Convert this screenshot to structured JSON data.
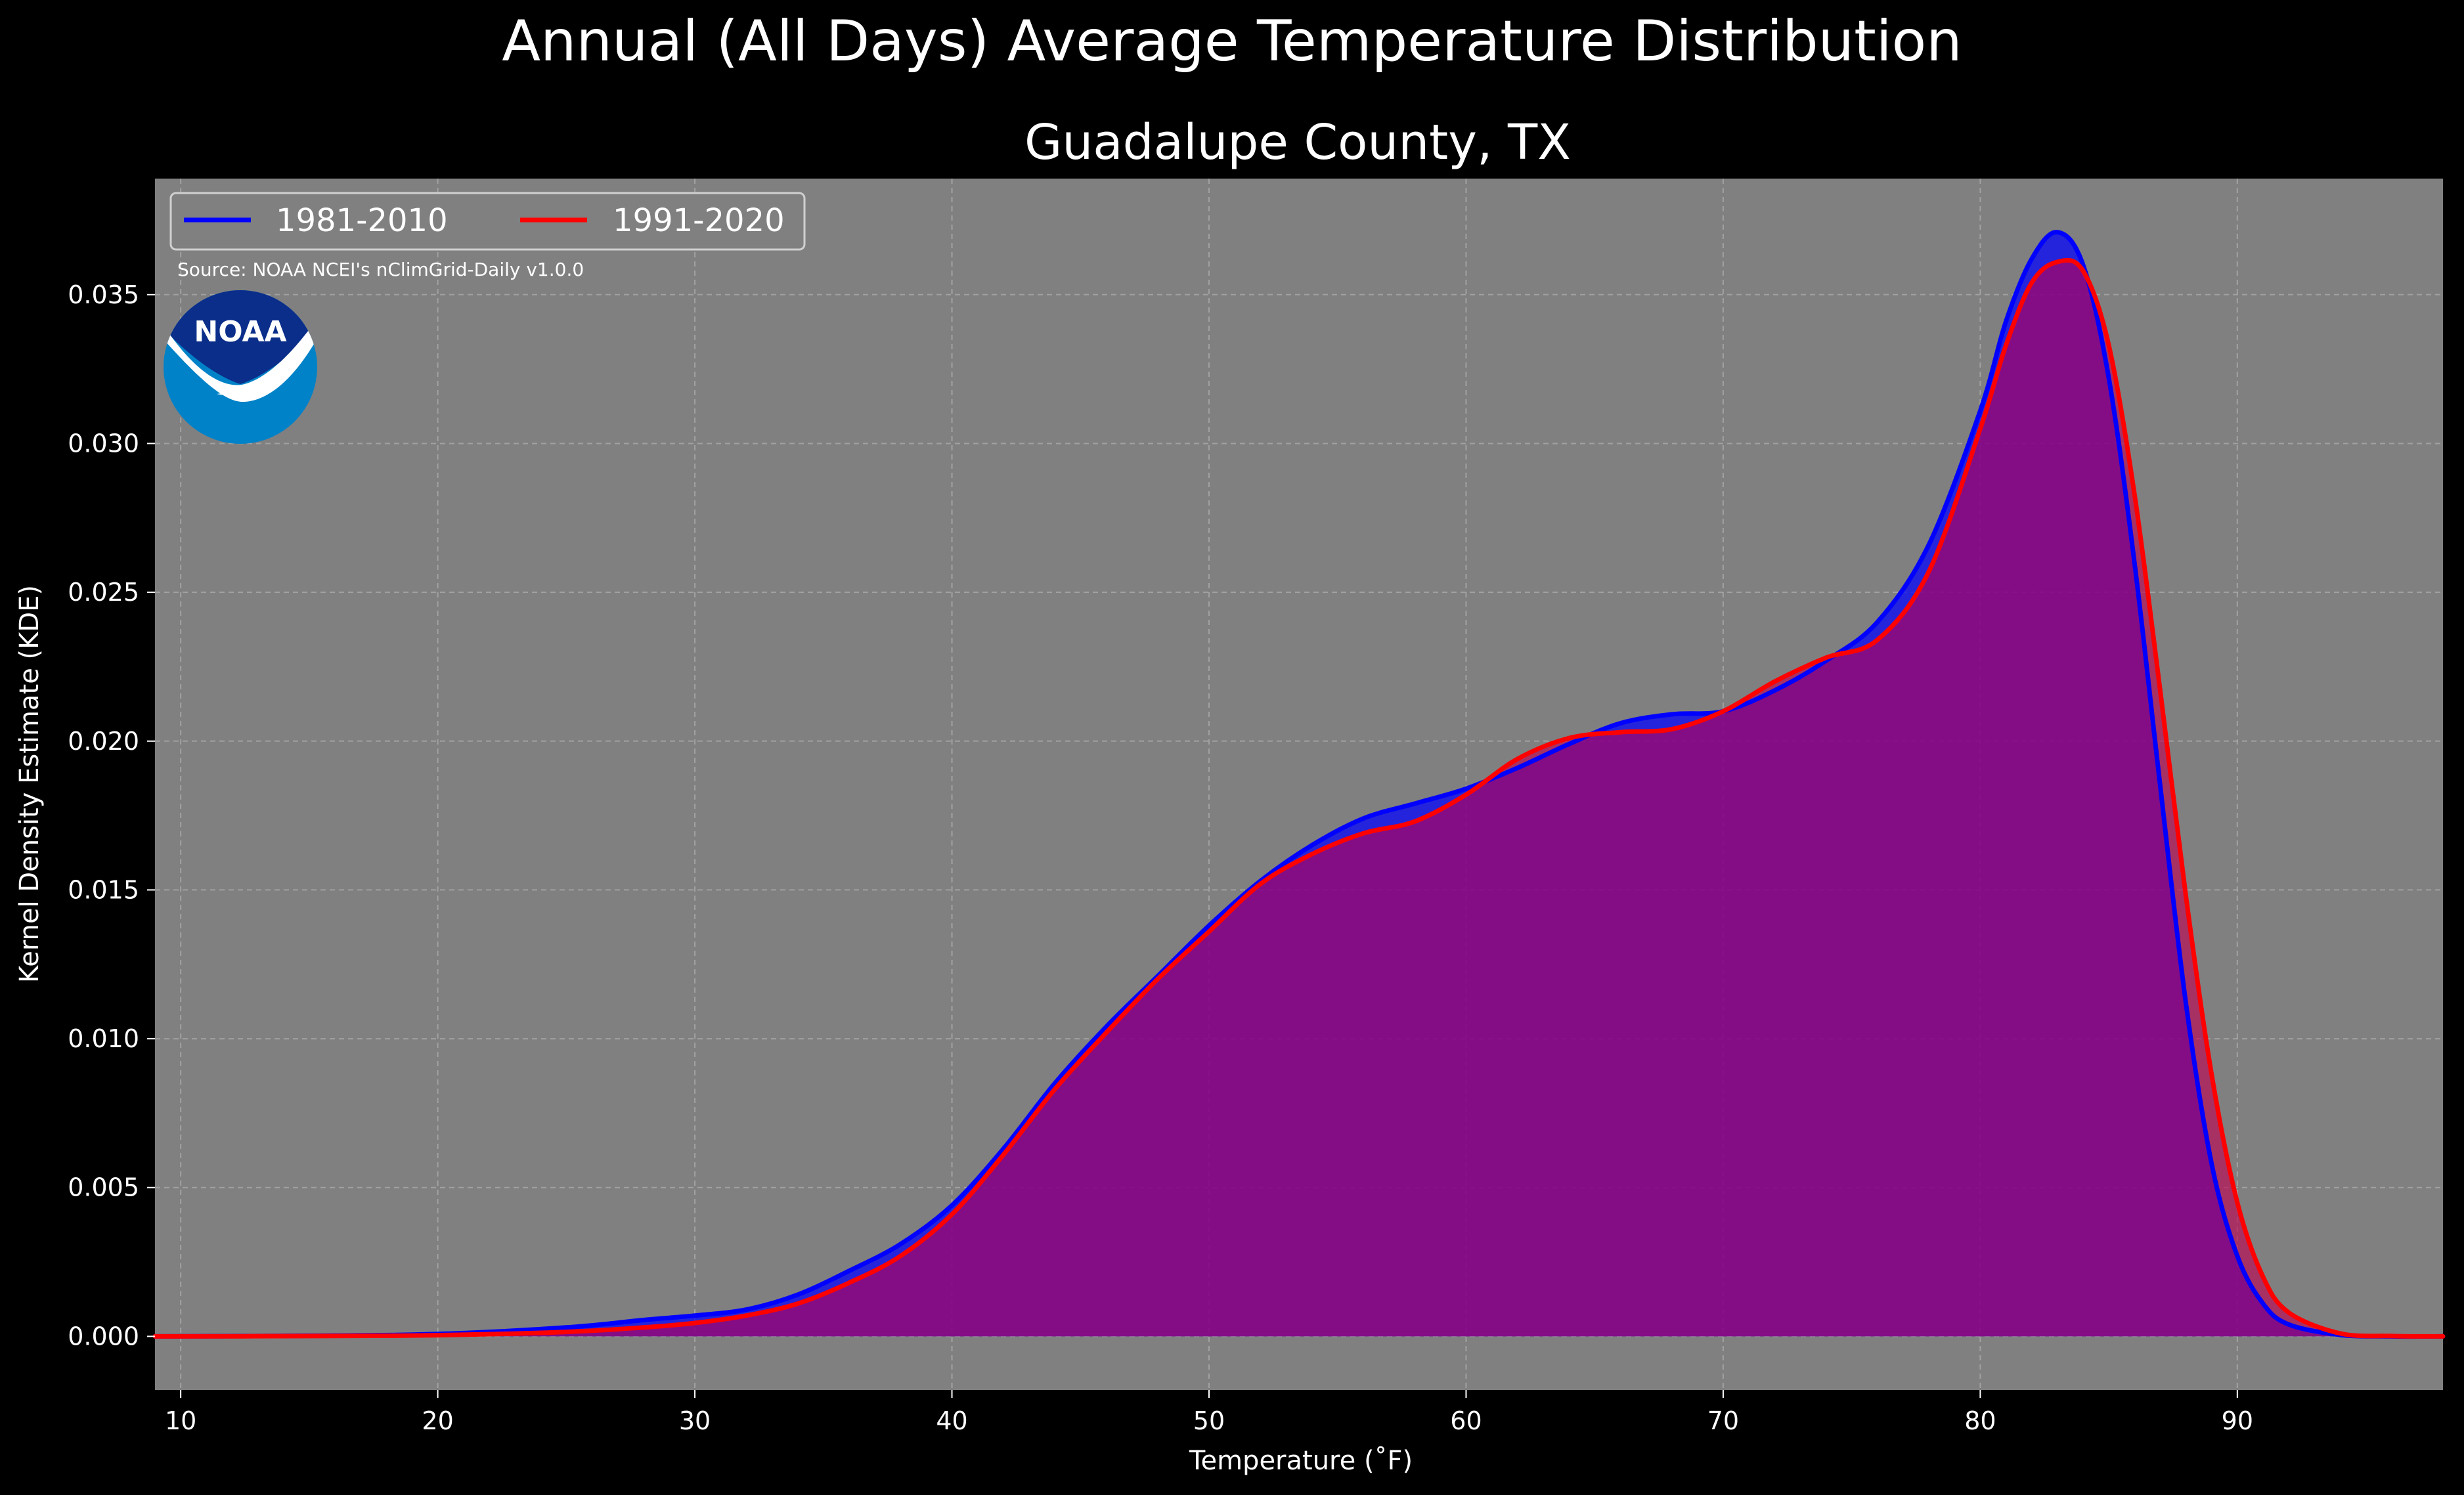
{
  "chart_data": {
    "type": "area",
    "suptitle": "Annual (All Days) Average Temperature Distribution",
    "title": "Guadalupe County, TX",
    "xlabel": "Temperature (˚F)",
    "ylabel": "Kernel Density Estimate (KDE)",
    "xlim": [
      9,
      98
    ],
    "ylim": [
      -0.0018,
      0.0389
    ],
    "xticks": [
      10,
      20,
      30,
      40,
      50,
      60,
      70,
      80,
      90
    ],
    "yticks": [
      0.0,
      0.005,
      0.01,
      0.015,
      0.02,
      0.025,
      0.03,
      0.035
    ],
    "ytick_labels": [
      "0.000",
      "0.005",
      "0.010",
      "0.015",
      "0.020",
      "0.025",
      "0.030",
      "0.035"
    ],
    "grid": true,
    "legend_placement": "top-left",
    "source": "Source: NOAA NCEI's nClimGrid-Daily v1.0.0",
    "logo_text": "NOAA",
    "colors": {
      "figure_background": "#000000",
      "axes_background": "#808080",
      "text": "#ffffff",
      "grid": "#b0b0b0",
      "logo_dark": "#0a2e8a",
      "logo_light": "#0082c8"
    },
    "series": [
      {
        "name": "1981-2010",
        "color": "#0000ff",
        "fill": "#0000ff",
        "points": [
          [
            9,
            0.0
          ],
          [
            15,
            2e-05
          ],
          [
            20,
            8e-05
          ],
          [
            25,
            0.0003
          ],
          [
            28,
            0.00055
          ],
          [
            30,
            0.0007
          ],
          [
            32,
            0.0009
          ],
          [
            34,
            0.0014
          ],
          [
            36,
            0.0022
          ],
          [
            38,
            0.0031
          ],
          [
            40,
            0.0044
          ],
          [
            42,
            0.0063
          ],
          [
            44,
            0.0085
          ],
          [
            46,
            0.0104
          ],
          [
            48,
            0.0121
          ],
          [
            50,
            0.0138
          ],
          [
            52,
            0.0153
          ],
          [
            54,
            0.0165
          ],
          [
            56,
            0.0174
          ],
          [
            58,
            0.0179
          ],
          [
            60,
            0.0184
          ],
          [
            62,
            0.0191
          ],
          [
            64,
            0.0199
          ],
          [
            66,
            0.0206
          ],
          [
            68,
            0.0209
          ],
          [
            70,
            0.021
          ],
          [
            72,
            0.0217
          ],
          [
            74,
            0.0227
          ],
          [
            76,
            0.024
          ],
          [
            78,
            0.0266
          ],
          [
            80,
            0.0311
          ],
          [
            81,
            0.0341
          ],
          [
            82,
            0.0362
          ],
          [
            83,
            0.0371
          ],
          [
            84,
            0.036
          ],
          [
            85,
            0.0322
          ],
          [
            86,
            0.026
          ],
          [
            87,
            0.0185
          ],
          [
            88,
            0.0112
          ],
          [
            89,
            0.0058
          ],
          [
            90,
            0.0027
          ],
          [
            91,
            0.0011
          ],
          [
            92,
            0.0004
          ],
          [
            94,
            5e-05
          ],
          [
            96,
            0.0
          ],
          [
            98,
            0.0
          ]
        ]
      },
      {
        "name": "1991-2020",
        "color": "#ff0000",
        "fill": "#c00050",
        "points": [
          [
            9,
            0.0
          ],
          [
            15,
            1e-05
          ],
          [
            20,
            4e-05
          ],
          [
            25,
            0.00015
          ],
          [
            28,
            0.0003
          ],
          [
            30,
            0.00045
          ],
          [
            32,
            0.0007
          ],
          [
            34,
            0.0011
          ],
          [
            36,
            0.0018
          ],
          [
            38,
            0.0027
          ],
          [
            40,
            0.0041
          ],
          [
            42,
            0.0061
          ],
          [
            44,
            0.0083
          ],
          [
            46,
            0.0102
          ],
          [
            48,
            0.012
          ],
          [
            50,
            0.0136
          ],
          [
            52,
            0.0152
          ],
          [
            54,
            0.0162
          ],
          [
            56,
            0.0169
          ],
          [
            58,
            0.0173
          ],
          [
            60,
            0.0182
          ],
          [
            62,
            0.0194
          ],
          [
            64,
            0.0201
          ],
          [
            66,
            0.0203
          ],
          [
            68,
            0.0204
          ],
          [
            70,
            0.021
          ],
          [
            72,
            0.022
          ],
          [
            74,
            0.0228
          ],
          [
            76,
            0.0234
          ],
          [
            78,
            0.0257
          ],
          [
            80,
            0.0305
          ],
          [
            81,
            0.0333
          ],
          [
            82,
            0.0354
          ],
          [
            83,
            0.0361
          ],
          [
            84,
            0.0358
          ],
          [
            85,
            0.0333
          ],
          [
            86,
            0.0283
          ],
          [
            87,
            0.0217
          ],
          [
            88,
            0.0148
          ],
          [
            89,
            0.0088
          ],
          [
            90,
            0.0045
          ],
          [
            91,
            0.002
          ],
          [
            92,
            0.0008
          ],
          [
            94,
            0.0001
          ],
          [
            96,
            1e-05
          ],
          [
            98,
            0.0
          ]
        ]
      }
    ]
  }
}
